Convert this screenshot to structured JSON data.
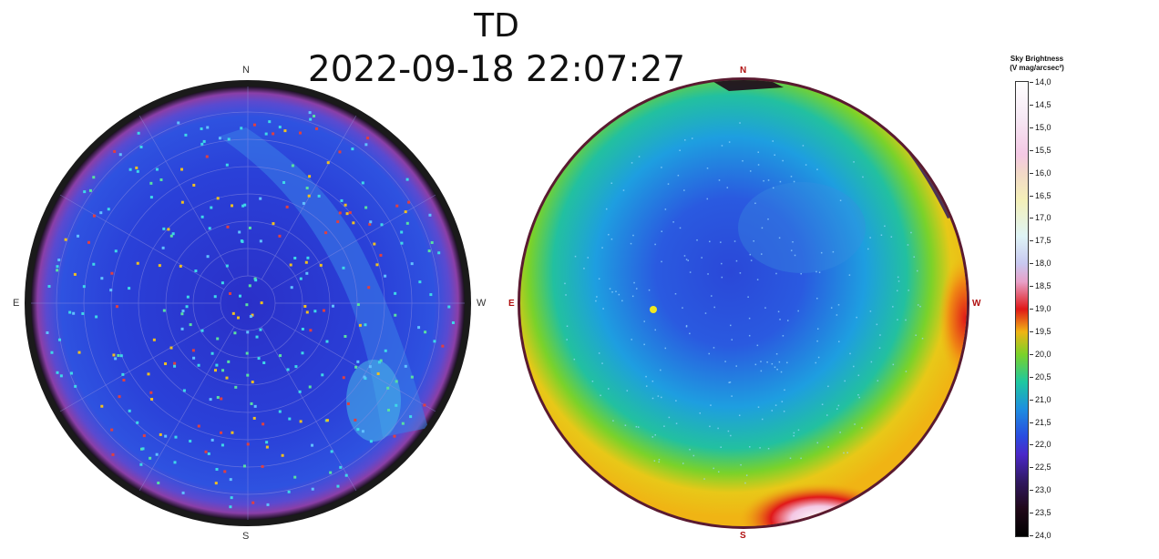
{
  "title": {
    "line1": "TD",
    "line2": "2022-09-18 22:07:27"
  },
  "left_map": {
    "labels": {
      "north": "N",
      "south": "S",
      "east": "E",
      "west": "W"
    },
    "colors": {
      "sky": "#2a3fd8",
      "rim": "#7a3fa8",
      "frame": "#1a1a1a",
      "grid": "#8080d8"
    }
  },
  "right_map": {
    "labels": {
      "north": "N",
      "south": "S",
      "east": "E",
      "west": "W"
    },
    "colors": {
      "zenith": "#2a5ad8",
      "mid": "#22a8e0",
      "horizon": "#f0c020",
      "glow": "#e02030"
    }
  },
  "colorbar": {
    "title_line1": "Sky Brightness",
    "title_line2": "(V mag/arcsec²)",
    "ticks": [
      "14,0",
      "14,5",
      "15,0",
      "15,5",
      "16,0",
      "16,5",
      "17,0",
      "17,5",
      "18,0",
      "18,5",
      "19,0",
      "19,5",
      "20,0",
      "20,5",
      "21,0",
      "21,5",
      "22,0",
      "22,5",
      "23,0",
      "23,5",
      "24,0"
    ]
  }
}
